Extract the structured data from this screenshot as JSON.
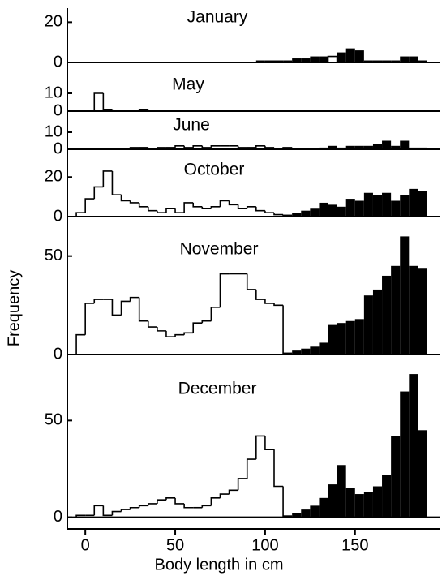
{
  "chart_data": [
    {
      "type": "histogram",
      "title": "January",
      "ylim": [
        0,
        27
      ],
      "yticks": [
        0,
        20
      ],
      "bins": [
        -5,
        0,
        5,
        10,
        15,
        20,
        25,
        30,
        35,
        40,
        45,
        50,
        55,
        60,
        65,
        70,
        75,
        80,
        85,
        90,
        95,
        100,
        105,
        110,
        115,
        120,
        125,
        130,
        135,
        140,
        145,
        150,
        155,
        160,
        165,
        170,
        175,
        180,
        185,
        190
      ],
      "series": [
        {
          "color": "#000000",
          "filled": true,
          "values": [
            0,
            0,
            0,
            0,
            0,
            0,
            0,
            0,
            0,
            0,
            0,
            0,
            0,
            0,
            0,
            0,
            0,
            0,
            0,
            0,
            1,
            1,
            1,
            1,
            2,
            2,
            3,
            3,
            0,
            5,
            7,
            6,
            1,
            1,
            1,
            1,
            3,
            3,
            1
          ]
        },
        {
          "color": "#000000",
          "filled": false,
          "values": [
            0,
            0,
            0,
            0,
            0,
            0,
            0,
            0,
            0,
            0,
            0,
            0,
            0,
            0,
            0,
            0,
            0,
            0,
            0,
            0,
            0,
            0,
            0,
            0,
            0,
            0,
            0,
            0,
            3,
            0,
            0,
            0,
            0,
            0,
            0,
            0,
            0,
            0,
            0
          ]
        }
      ]
    },
    {
      "type": "histogram",
      "title": "May",
      "ylim": [
        0,
        25
      ],
      "yticks": [
        0,
        10
      ],
      "bins": [
        -5,
        0,
        5,
        10,
        15,
        20,
        25,
        30,
        35,
        40,
        45,
        50,
        55,
        60,
        65,
        70,
        75,
        80,
        85,
        90,
        95,
        100,
        105,
        110,
        115,
        120,
        125,
        130,
        135,
        140,
        145,
        150,
        155,
        160,
        165,
        170,
        175,
        180,
        185,
        190
      ],
      "series": [
        {
          "color": "#000000",
          "filled": true,
          "values": [
            0,
            0,
            0,
            0,
            0,
            0,
            0,
            0,
            0,
            0,
            0,
            0,
            0,
            0,
            0,
            0,
            0,
            0,
            0,
            0,
            0,
            0,
            0,
            0,
            0,
            0,
            0,
            0,
            0,
            0,
            0,
            0,
            0,
            0,
            0,
            0,
            0,
            0,
            0
          ]
        },
        {
          "color": "#000000",
          "filled": false,
          "values": [
            0,
            0,
            10,
            1,
            0,
            0,
            0,
            1,
            0,
            0,
            0,
            0,
            0,
            0,
            0,
            0,
            0,
            0,
            0,
            0,
            0,
            0,
            0,
            0,
            0,
            0,
            0,
            0,
            0,
            0,
            0,
            0,
            0,
            0,
            0,
            0,
            0,
            0,
            0
          ]
        }
      ]
    },
    {
      "type": "histogram",
      "title": "June",
      "ylim": [
        0,
        20
      ],
      "yticks": [
        0,
        10
      ],
      "bins": [
        -5,
        0,
        5,
        10,
        15,
        20,
        25,
        30,
        35,
        40,
        45,
        50,
        55,
        60,
        65,
        70,
        75,
        80,
        85,
        90,
        95,
        100,
        105,
        110,
        115,
        120,
        125,
        130,
        135,
        140,
        145,
        150,
        155,
        160,
        165,
        170,
        175,
        180,
        185,
        190
      ],
      "series": [
        {
          "color": "#000000",
          "filled": true,
          "values": [
            0,
            0,
            0,
            0,
            0,
            0,
            0,
            0,
            0,
            0,
            0,
            0,
            0,
            0,
            0,
            0,
            0,
            0,
            0,
            0,
            0,
            0,
            0,
            0,
            0,
            0,
            0,
            1,
            2,
            1,
            2,
            2,
            2,
            3,
            5,
            2,
            5,
            1,
            1
          ]
        },
        {
          "color": "#000000",
          "filled": false,
          "values": [
            0,
            0,
            0,
            0,
            0,
            0,
            1,
            1,
            0,
            1,
            1,
            2,
            1,
            2,
            1,
            2,
            2,
            2,
            1,
            1,
            2,
            1,
            0,
            1,
            0,
            0,
            0,
            0,
            0,
            0,
            0,
            0,
            0,
            0,
            0,
            0,
            0,
            0,
            0
          ]
        }
      ]
    },
    {
      "type": "histogram",
      "title": "October",
      "ylim": [
        0,
        32
      ],
      "yticks": [
        0,
        20
      ],
      "bins": [
        -5,
        0,
        5,
        10,
        15,
        20,
        25,
        30,
        35,
        40,
        45,
        50,
        55,
        60,
        65,
        70,
        75,
        80,
        85,
        90,
        95,
        100,
        105,
        110,
        115,
        120,
        125,
        130,
        135,
        140,
        145,
        150,
        155,
        160,
        165,
        170,
        175,
        180,
        185,
        190
      ],
      "series": [
        {
          "color": "#000000",
          "filled": true,
          "values": [
            0,
            0,
            0,
            0,
            0,
            0,
            0,
            0,
            0,
            0,
            0,
            0,
            0,
            0,
            0,
            0,
            0,
            0,
            0,
            0,
            0,
            0,
            0,
            1,
            2,
            3,
            4,
            7,
            6,
            5,
            9,
            8,
            12,
            11,
            12,
            8,
            11,
            14,
            13
          ]
        },
        {
          "color": "#000000",
          "filled": false,
          "values": [
            2,
            9,
            15,
            23,
            11,
            8,
            7,
            5,
            3,
            2,
            4,
            2,
            7,
            5,
            4,
            5,
            8,
            6,
            4,
            5,
            3,
            2,
            1,
            0,
            0,
            0,
            0,
            0,
            0,
            0,
            0,
            0,
            0,
            0,
            0,
            0,
            0,
            0,
            0
          ]
        }
      ]
    },
    {
      "type": "histogram",
      "title": "November",
      "ylabel": "Frequency",
      "ylim": [
        0,
        68
      ],
      "yticks": [
        0,
        50
      ],
      "bins": [
        -5,
        0,
        5,
        10,
        15,
        20,
        25,
        30,
        35,
        40,
        45,
        50,
        55,
        60,
        65,
        70,
        75,
        80,
        85,
        90,
        95,
        100,
        105,
        110,
        115,
        120,
        125,
        130,
        135,
        140,
        145,
        150,
        155,
        160,
        165,
        170,
        175,
        180,
        185,
        190
      ],
      "series": [
        {
          "color": "#000000",
          "filled": true,
          "values": [
            0,
            0,
            0,
            0,
            0,
            0,
            0,
            0,
            0,
            0,
            0,
            0,
            0,
            0,
            0,
            0,
            0,
            0,
            0,
            0,
            0,
            0,
            0,
            1,
            2,
            3,
            4,
            6,
            15,
            16,
            17,
            18,
            30,
            33,
            40,
            45,
            60,
            45,
            44
          ]
        },
        {
          "color": "#000000",
          "filled": false,
          "values": [
            10,
            26,
            28,
            28,
            20,
            27,
            29,
            17,
            14,
            12,
            9,
            10,
            11,
            16,
            17,
            24,
            41,
            41,
            41,
            33,
            28,
            26,
            25,
            0,
            0,
            0,
            0,
            0,
            0,
            0,
            0,
            0,
            0,
            0,
            0,
            0,
            0,
            0,
            0
          ]
        }
      ]
    },
    {
      "type": "histogram",
      "title": "December",
      "xlabel": "Body length in cm",
      "ylim": [
        -6,
        82
      ],
      "yticks": [
        0,
        50
      ],
      "xlim": [
        -10,
        197
      ],
      "xticks": [
        0,
        50,
        100,
        150
      ],
      "bins": [
        -5,
        0,
        5,
        10,
        15,
        20,
        25,
        30,
        35,
        40,
        45,
        50,
        55,
        60,
        65,
        70,
        75,
        80,
        85,
        90,
        95,
        100,
        105,
        110,
        115,
        120,
        125,
        130,
        135,
        140,
        145,
        150,
        155,
        160,
        165,
        170,
        175,
        180,
        185,
        190
      ],
      "series": [
        {
          "color": "#000000",
          "filled": true,
          "values": [
            0,
            0,
            0,
            0,
            0,
            0,
            0,
            0,
            0,
            0,
            0,
            0,
            0,
            0,
            0,
            0,
            0,
            0,
            0,
            0,
            0,
            0,
            0,
            1,
            2,
            4,
            6,
            10,
            17,
            27,
            15,
            12,
            13,
            16,
            22,
            42,
            65,
            74,
            45
          ]
        },
        {
          "color": "#000000",
          "filled": false,
          "values": [
            1,
            1,
            6,
            1,
            3,
            4,
            5,
            6,
            7,
            9,
            10,
            7,
            5,
            5,
            6,
            10,
            12,
            14,
            20,
            30,
            42,
            35,
            16,
            0,
            0,
            0,
            0,
            0,
            0,
            0,
            0,
            0,
            0,
            0,
            0,
            0,
            0,
            0,
            0
          ]
        }
      ]
    }
  ]
}
